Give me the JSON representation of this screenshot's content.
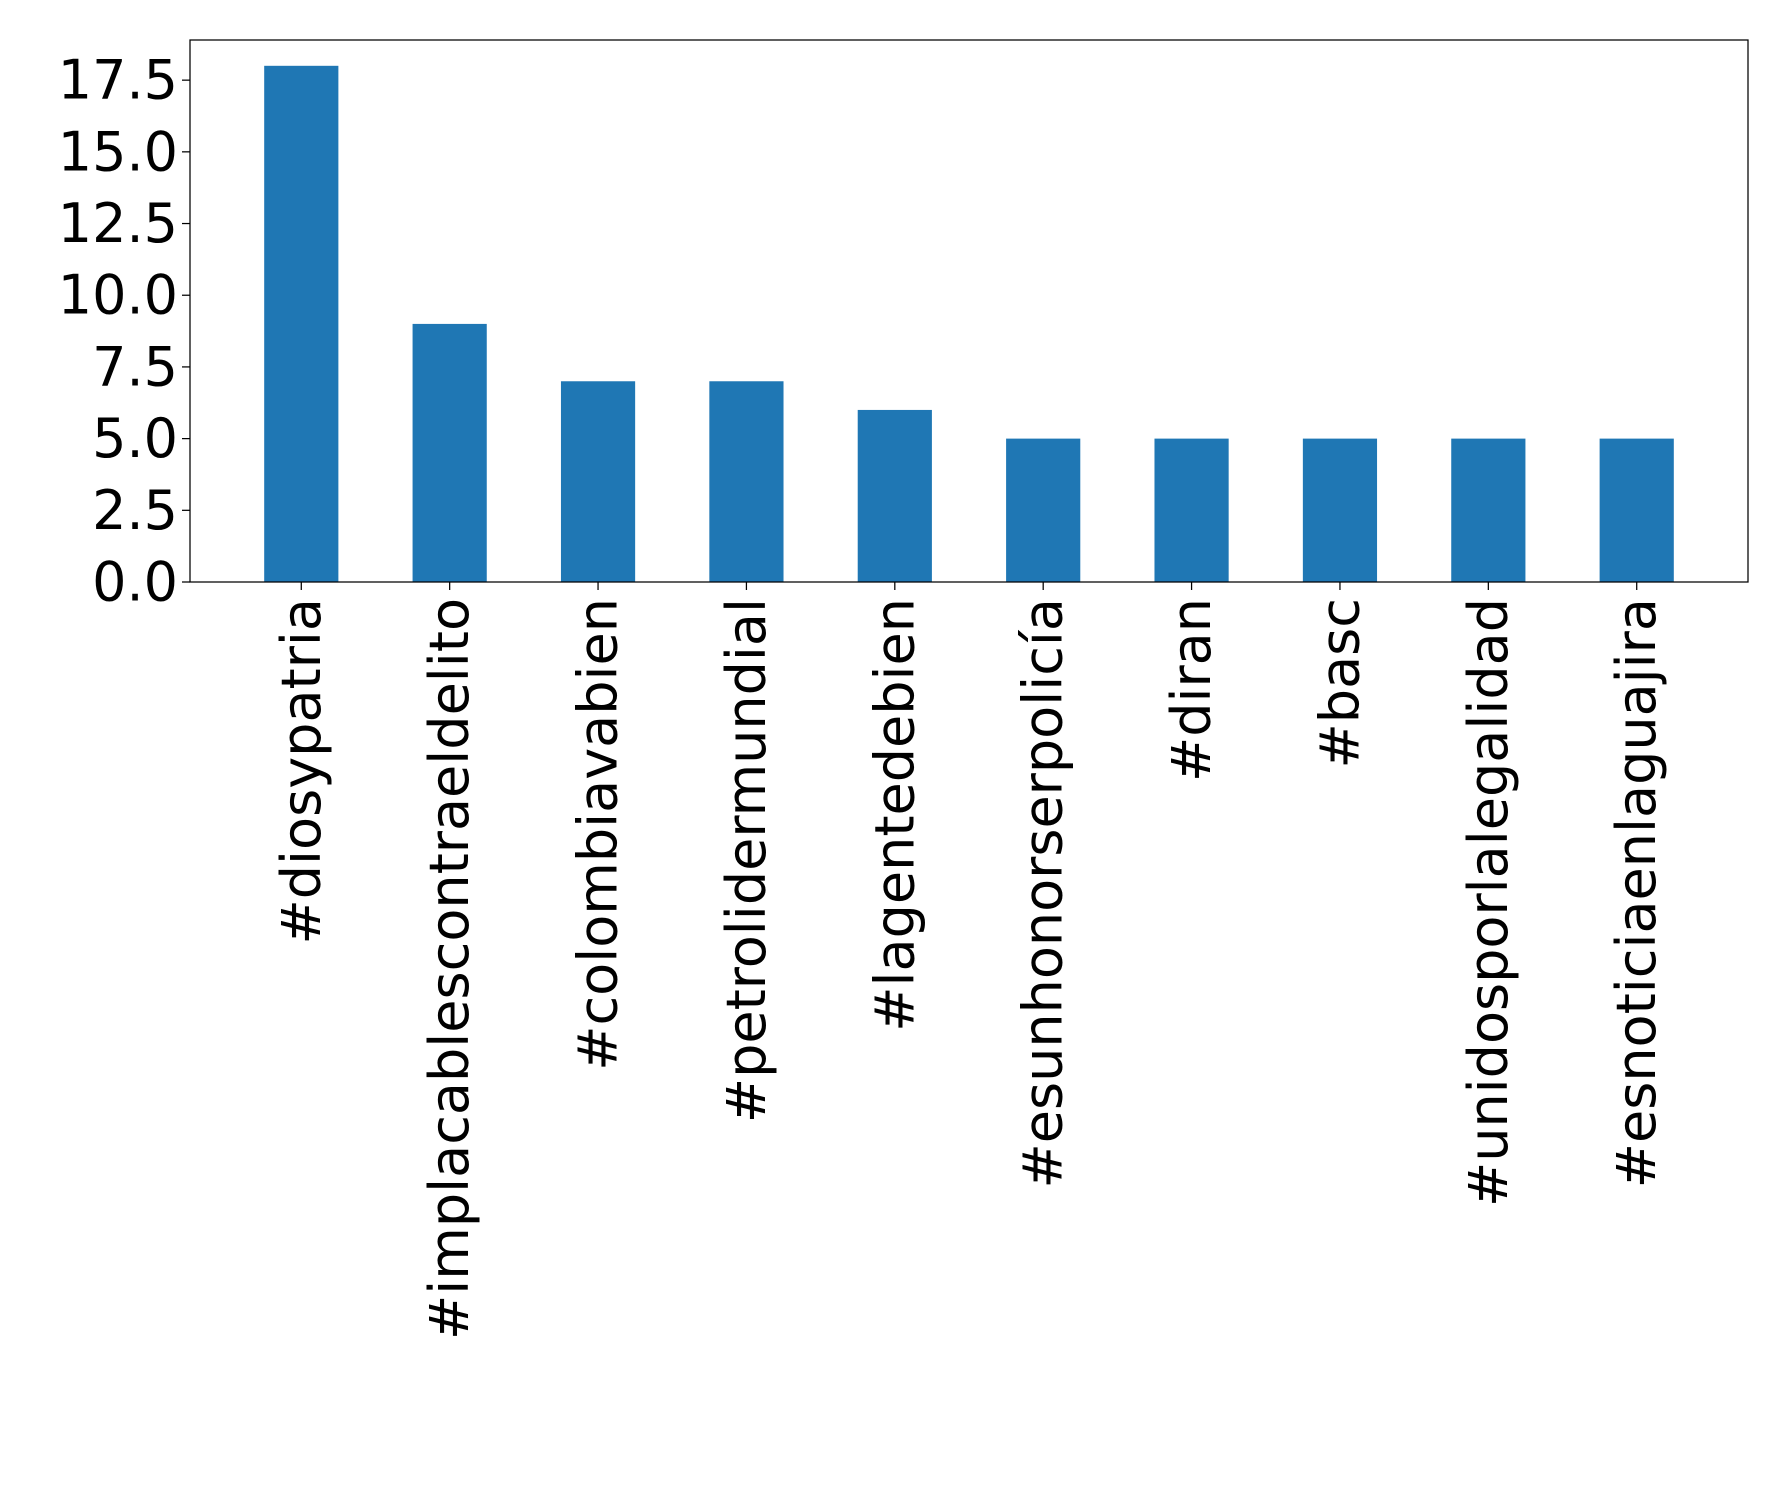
{
  "chart_data": {
    "type": "bar",
    "title": "",
    "xlabel": "",
    "ylabel": "",
    "categories": [
      "#diosypatria",
      "#implacablescontraeldelito",
      "#colombiavabien",
      "#petrolidermundial",
      "#lagentedebien",
      "#esunhonorserpolicía",
      "#diran",
      "#basc",
      "#unidosporlalegalidad",
      "#esnoticiaenlaguajira"
    ],
    "values": [
      18,
      9,
      7,
      7,
      6,
      5,
      5,
      5,
      5,
      5
    ],
    "ylim": [
      0,
      18.9
    ],
    "yticks": [
      0.0,
      2.5,
      5.0,
      7.5,
      10.0,
      12.5,
      15.0,
      17.5
    ],
    "ytick_labels": [
      "0.0",
      "2.5",
      "5.0",
      "7.5",
      "10.0",
      "12.5",
      "15.0",
      "17.5"
    ],
    "bar_color": "#1f77b4",
    "grid": false,
    "legend": "none",
    "xtick_rotation": "vertical"
  }
}
